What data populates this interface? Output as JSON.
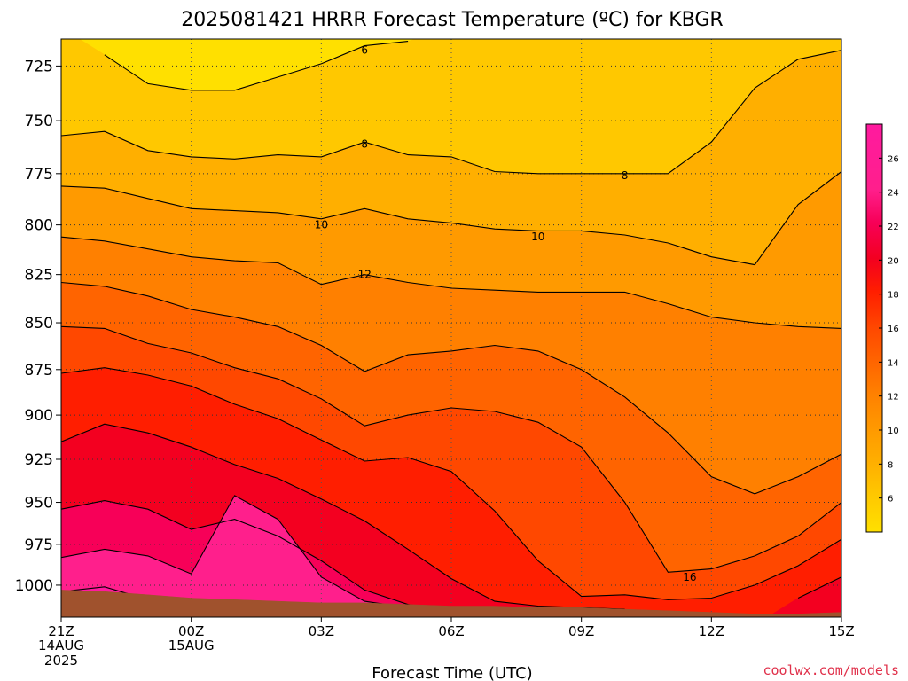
{
  "chart_data": {
    "type": "heatmap",
    "title": "2025081421 HRRR Forecast Temperature (ºC) for KBGR",
    "xlabel": "Forecast Time (UTC)",
    "ylabel": "",
    "x_ticks": [
      {
        "label": "21Z",
        "sub": [
          "14AUG",
          "2025"
        ],
        "hour": 0
      },
      {
        "label": "00Z",
        "sub": [
          "15AUG"
        ],
        "hour": 3
      },
      {
        "label": "03Z",
        "sub": [],
        "hour": 6
      },
      {
        "label": "06Z",
        "sub": [],
        "hour": 9
      },
      {
        "label": "09Z",
        "sub": [],
        "hour": 12
      },
      {
        "label": "12Z",
        "sub": [],
        "hour": 15
      },
      {
        "label": "15Z",
        "sub": [],
        "hour": 18
      }
    ],
    "xlim": [
      0,
      18
    ],
    "y_ticks": [
      725,
      750,
      775,
      800,
      825,
      850,
      875,
      900,
      925,
      950,
      975,
      1000
    ],
    "ylim_hPa": [
      713,
      1020
    ],
    "y_scale": "log-pressure (inverted)",
    "grid": "dotted",
    "contour_interval": 2,
    "contour_labels": [
      {
        "text": "6",
        "hour": 7,
        "p": 718
      },
      {
        "text": "8",
        "hour": 7,
        "p": 761
      },
      {
        "text": "8",
        "hour": 13,
        "p": 776
      },
      {
        "text": "10",
        "hour": 6,
        "p": 800
      },
      {
        "text": "10",
        "hour": 11,
        "p": 806
      },
      {
        "text": "12",
        "hour": 7,
        "p": 825
      },
      {
        "text": "16",
        "hour": 14.5,
        "p": 995
      }
    ],
    "colorbar": {
      "ticks": [
        6,
        8,
        10,
        12,
        14,
        16,
        18,
        20,
        22,
        24,
        26
      ],
      "colors": [
        "#ffe000",
        "#ffc800",
        "#ffaf00",
        "#ff9a00",
        "#ff8000",
        "#ff6400",
        "#ff4800",
        "#ff1e00",
        "#f30020",
        "#f70058",
        "#ff1f8c",
        "#ff1a9f"
      ],
      "range": [
        4,
        28
      ]
    },
    "columns_hours": [
      0,
      1,
      2,
      3,
      4,
      5,
      6,
      7,
      8,
      9,
      10,
      11,
      12,
      13,
      14,
      15,
      16,
      17,
      18
    ],
    "isotherms_hPa": [
      {
        "t": 6,
        "p": [
          null,
          720,
          733,
          736,
          736,
          730,
          724,
          716,
          714,
          null,
          null,
          null,
          null,
          null,
          null,
          null,
          null,
          null,
          null
        ]
      },
      {
        "t": 8,
        "p": [
          757,
          755,
          764,
          767,
          768,
          766,
          767,
          760,
          766,
          767,
          774,
          775,
          775,
          775,
          775,
          760,
          735,
          722,
          718
        ]
      },
      {
        "t": 10,
        "p": [
          781,
          782,
          787,
          792,
          793,
          794,
          797,
          792,
          797,
          799,
          802,
          803,
          803,
          805,
          809,
          816,
          820,
          790,
          774
        ]
      },
      {
        "t": 12,
        "p": [
          806,
          808,
          812,
          816,
          818,
          819,
          830,
          825,
          829,
          832,
          833,
          834,
          834,
          834,
          840,
          847,
          850,
          852,
          853
        ]
      },
      {
        "t": 14,
        "p": [
          829,
          831,
          836,
          843,
          847,
          852,
          862,
          876,
          867,
          865,
          862,
          865,
          875,
          890,
          910,
          935,
          945,
          935,
          922
        ]
      },
      {
        "t": 16,
        "p": [
          852,
          853,
          861,
          866,
          874,
          880,
          891,
          906,
          900,
          896,
          898,
          904,
          918,
          950,
          992,
          990,
          982,
          970,
          950
        ]
      },
      {
        "t": 18,
        "p": [
          877,
          874,
          878,
          884,
          894,
          902,
          914,
          926,
          924,
          932,
          955,
          985,
          1007,
          1006,
          1009,
          1008,
          1000,
          988,
          972
        ]
      },
      {
        "t": 20,
        "p": [
          915,
          905,
          910,
          918,
          928,
          936,
          948,
          961,
          978,
          996,
          1010,
          1013,
          1014,
          1015,
          null,
          null,
          null,
          1008,
          995
        ]
      },
      {
        "t": 22,
        "p": [
          954,
          949,
          954,
          966,
          960,
          970,
          985,
          1003,
          1012,
          1016,
          null,
          null,
          null,
          null,
          null,
          null,
          null,
          null,
          null
        ]
      },
      {
        "t": 24,
        "p": [
          983,
          978,
          982,
          993,
          946,
          960,
          995,
          1010,
          1014,
          null,
          null,
          null,
          null,
          null,
          null,
          null,
          null,
          null,
          null
        ]
      },
      {
        "t": 26,
        "p": [
          1004,
          1001,
          1009,
          1011,
          1014,
          1016,
          null,
          null,
          null,
          null,
          null,
          null,
          null,
          null,
          null,
          null,
          null,
          null,
          null
        ]
      }
    ],
    "surface_hPa": [
      1003,
      1004,
      1006,
      1008,
      1009,
      1010,
      1011,
      1011,
      1012,
      1013,
      1013,
      1014,
      1014,
      1015,
      1016,
      1017,
      1018,
      1018,
      1017
    ]
  },
  "credit": "coolwx.com/models"
}
